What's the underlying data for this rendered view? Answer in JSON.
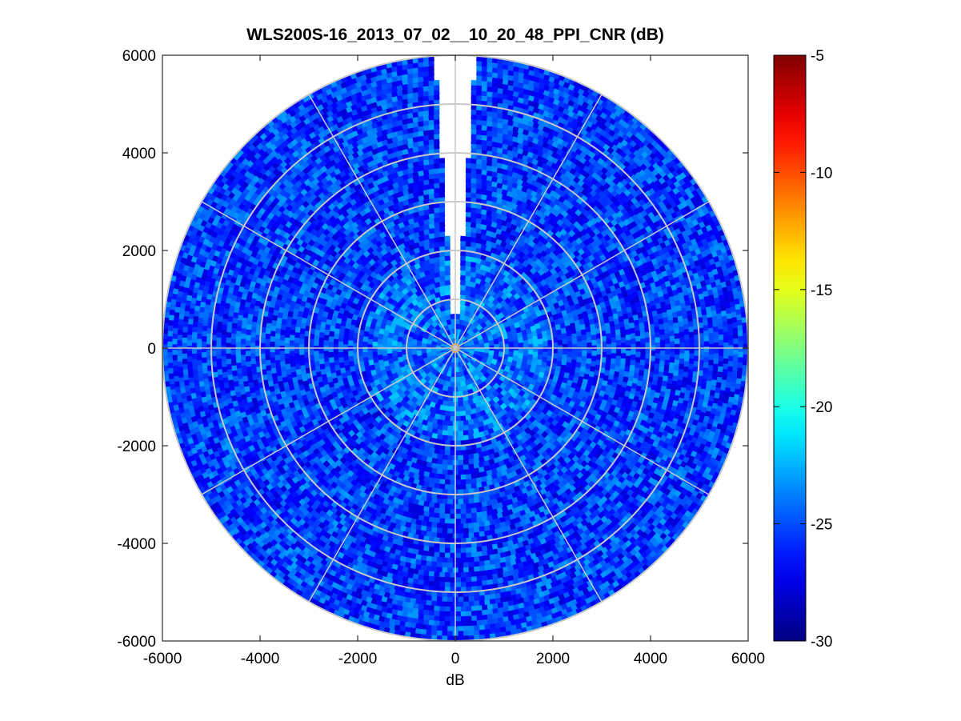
{
  "chart_data": {
    "type": "heatmap",
    "subtype": "polar-ppi",
    "title": "WLS200S-16_2013_07_02__10_20_48_PPI_CNR (dB)",
    "xlabel": "dB",
    "ylabel": "",
    "xlim": [
      -6000,
      6000
    ],
    "ylim": [
      -6000,
      6000
    ],
    "xticks": [
      -6000,
      -4000,
      -2000,
      0,
      2000,
      4000,
      6000
    ],
    "yticks": [
      6000,
      4000,
      2000,
      0,
      -2000,
      -4000,
      -6000
    ],
    "max_range": 6000,
    "range_rings": [
      1000,
      2000,
      3000,
      4000,
      5000,
      6000
    ],
    "radial_spokes_deg": [
      0,
      30,
      60,
      90,
      120,
      150,
      180,
      210,
      240,
      270,
      300,
      330
    ],
    "missing_sector_deg": [
      -4,
      4
    ],
    "colormap": "jet",
    "colorbar": {
      "clim": [
        -30,
        -5
      ],
      "ticks": [
        -5,
        -10,
        -15,
        -20,
        -25,
        -30
      ]
    },
    "typical_value_range": [
      -28,
      -23
    ],
    "grid": true
  },
  "colors": {
    "grid": "#c8c8c8",
    "axes": "#000000",
    "background": "#ffffff"
  }
}
